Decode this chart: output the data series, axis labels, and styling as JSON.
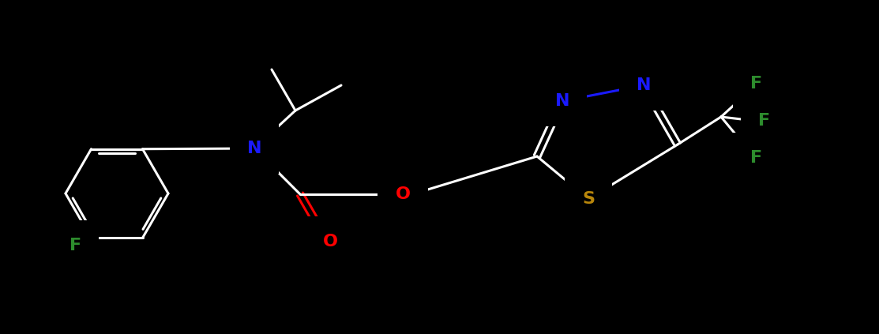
{
  "background_color": "#000000",
  "atom_colors": {
    "C": "#ffffff",
    "N": "#1a1aff",
    "O": "#ff0000",
    "F": "#2d8c2d",
    "S": "#b8860b",
    "bond": "#ffffff"
  },
  "figsize": [
    11.13,
    4.23
  ],
  "dpi": 100
}
